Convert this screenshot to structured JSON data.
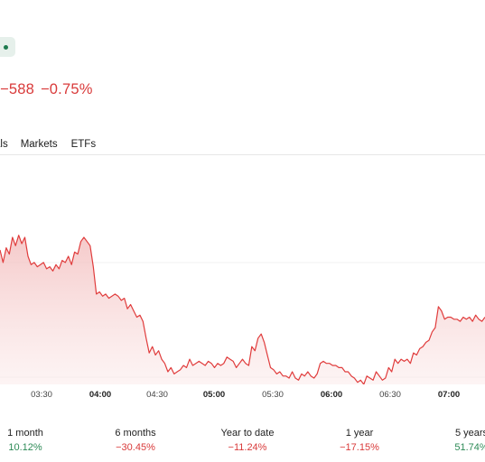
{
  "header": {
    "change_value": "−588",
    "change_percent": "−0.75%",
    "change_color": "#d93a3a"
  },
  "tabs": [
    {
      "label": "als"
    },
    {
      "label": "Markets"
    },
    {
      "label": "ETFs"
    }
  ],
  "chart_data": {
    "type": "area",
    "line_color": "#e03c3c",
    "x_ticks": [
      {
        "label": "03:30",
        "bold": false
      },
      {
        "label": "04:00",
        "bold": true
      },
      {
        "label": "04:30",
        "bold": false
      },
      {
        "label": "05:00",
        "bold": true
      },
      {
        "label": "05:30",
        "bold": false
      },
      {
        "label": "06:00",
        "bold": true
      },
      {
        "label": "06:30",
        "bold": false
      },
      {
        "label": "07:00",
        "bold": true
      }
    ],
    "series": [
      {
        "values": [
          64,
          58,
          65,
          62,
          70,
          66,
          71,
          67,
          70,
          61,
          57,
          58,
          56,
          57,
          58,
          55,
          56,
          54,
          57,
          55,
          59,
          58,
          61,
          57,
          63,
          62,
          68,
          70,
          68,
          66,
          56,
          43,
          44,
          42,
          43,
          41,
          42,
          43,
          42,
          40,
          41,
          36,
          38,
          35,
          32,
          33,
          30,
          22,
          15,
          18,
          14,
          16,
          12,
          10,
          6,
          8,
          5,
          6,
          7,
          9,
          8,
          12,
          9,
          10,
          11,
          10,
          9,
          11,
          10,
          8,
          10,
          9,
          10,
          13,
          12,
          11,
          8,
          10,
          12,
          10,
          9,
          18,
          16,
          22,
          24,
          20,
          14,
          8,
          7,
          5,
          6,
          4,
          4,
          3,
          6,
          3,
          2,
          5,
          4,
          6,
          4,
          3,
          5,
          10,
          11,
          10,
          10,
          9,
          9,
          8,
          8,
          6,
          6,
          4,
          3,
          1,
          2,
          0,
          4,
          3,
          2,
          6,
          4,
          2,
          3,
          8,
          6,
          12,
          10,
          12,
          11,
          12,
          10,
          15,
          14,
          17,
          18,
          20,
          21,
          25,
          27,
          37,
          35,
          31,
          32,
          32,
          31,
          31,
          30,
          32,
          31,
          32,
          30,
          33,
          31,
          30,
          32
        ]
      }
    ]
  },
  "periods": [
    {
      "label": "1 month",
      "value": "10.12%",
      "trend": "pos"
    },
    {
      "label": "6 months",
      "value": "−30.45%",
      "trend": "neg"
    },
    {
      "label": "Year to date",
      "value": "−11.24%",
      "trend": "neg"
    },
    {
      "label": "1 year",
      "value": "−17.15%",
      "trend": "neg"
    },
    {
      "label": "5 years",
      "value": "51.74%",
      "trend": "pos"
    }
  ]
}
